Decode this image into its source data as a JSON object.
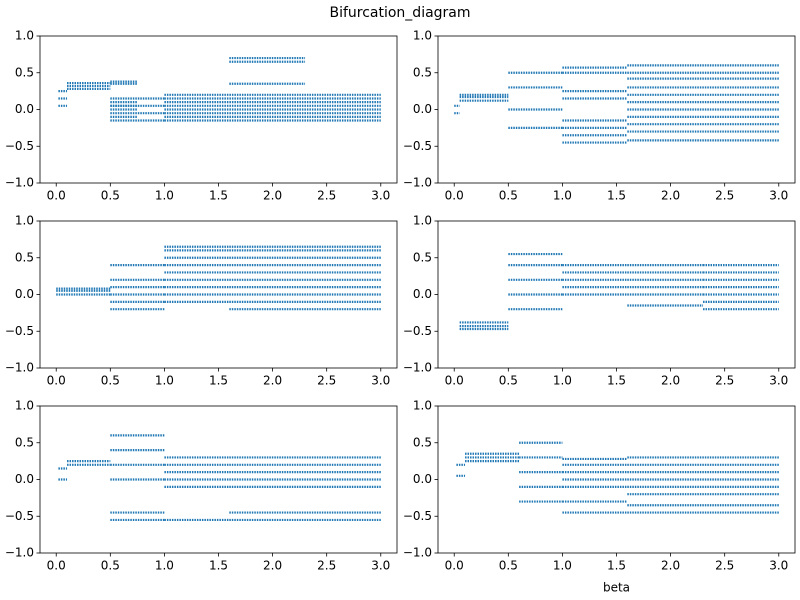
{
  "title": "Bifurcation_diagram",
  "chart_data": [
    {
      "type": "scatter",
      "color": "#1f77b4",
      "xlim": [
        -0.15,
        3.15
      ],
      "ylim": [
        -1,
        1
      ],
      "xticks": [
        {
          "value": 0,
          "label": "0.0"
        },
        {
          "value": 0.5,
          "label": "0.5"
        },
        {
          "value": 1,
          "label": "1.0"
        },
        {
          "value": 1.5,
          "label": "1.5"
        },
        {
          "value": 2,
          "label": "2.0"
        },
        {
          "value": 2.5,
          "label": "2.5"
        },
        {
          "value": 3,
          "label": "3.0"
        }
      ],
      "yticks": [
        {
          "value": -1,
          "label": "−1.0"
        },
        {
          "value": -0.5,
          "label": "−0.5"
        },
        {
          "value": 0,
          "label": "0.0"
        },
        {
          "value": 0.5,
          "label": "0.5"
        },
        {
          "value": 1,
          "label": "1.0"
        }
      ],
      "bands": [
        {
          "x": [
            0.02,
            0.1
          ],
          "levels": [
            0.05,
            0.15,
            0.25
          ]
        },
        {
          "x": [
            0.1,
            0.5
          ],
          "levels": [
            0.28,
            0.32,
            0.36
          ]
        },
        {
          "x": [
            0.5,
            0.75
          ],
          "levels": [
            0.35,
            0.38,
            0.0,
            0.05,
            0.1,
            -0.1
          ]
        },
        {
          "x": [
            0.5,
            1.0
          ],
          "levels": [
            -0.15,
            -0.05,
            0.05,
            0.15
          ]
        },
        {
          "x": [
            1.0,
            3.0
          ],
          "levels": [
            -0.15,
            -0.1,
            -0.05,
            0,
            0.05,
            0.1,
            0.15,
            0.2
          ]
        },
        {
          "x": [
            1.6,
            2.3
          ],
          "levels": [
            0.65,
            0.7,
            0.35
          ]
        }
      ]
    },
    {
      "type": "scatter",
      "color": "#1f77b4",
      "xlim": [
        -0.15,
        3.15
      ],
      "ylim": [
        -1,
        1
      ],
      "xticks": [
        {
          "value": 0,
          "label": "0.0"
        },
        {
          "value": 0.5,
          "label": "0.5"
        },
        {
          "value": 1,
          "label": "1.0"
        },
        {
          "value": 1.5,
          "label": "1.5"
        },
        {
          "value": 2,
          "label": "2.0"
        },
        {
          "value": 2.5,
          "label": "2.5"
        },
        {
          "value": 3,
          "label": "3.0"
        }
      ],
      "yticks": [
        {
          "value": -1,
          "label": "−1.0"
        },
        {
          "value": -0.5,
          "label": "−0.5"
        },
        {
          "value": 0,
          "label": "0.0"
        },
        {
          "value": 0.5,
          "label": "0.5"
        },
        {
          "value": 1,
          "label": "1.0"
        }
      ],
      "bands": [
        {
          "x": [
            0,
            0.05
          ],
          "levels": [
            -0.05,
            0.05
          ]
        },
        {
          "x": [
            0.05,
            0.5
          ],
          "levels": [
            0.12,
            0.17,
            0.2
          ]
        },
        {
          "x": [
            0.5,
            1.0
          ],
          "levels": [
            -0.25,
            0,
            0.3,
            0.5
          ]
        },
        {
          "x": [
            1.0,
            1.6
          ],
          "levels": [
            -0.45,
            -0.35,
            -0.25,
            -0.15,
            0.15,
            0.25,
            0.5,
            0.57
          ]
        },
        {
          "x": [
            1.6,
            3.0
          ],
          "levels": [
            -0.42,
            -0.3,
            -0.2,
            -0.1,
            0,
            0.1,
            0.2,
            0.3,
            0.42,
            0.5,
            0.6
          ]
        }
      ]
    },
    {
      "type": "scatter",
      "color": "#1f77b4",
      "xlim": [
        -0.15,
        3.15
      ],
      "ylim": [
        -1,
        1
      ],
      "xticks": [
        {
          "value": 0,
          "label": "0.0"
        },
        {
          "value": 0.5,
          "label": "0.5"
        },
        {
          "value": 1,
          "label": "1.0"
        },
        {
          "value": 1.5,
          "label": "1.5"
        },
        {
          "value": 2,
          "label": "2.0"
        },
        {
          "value": 2.5,
          "label": "2.5"
        },
        {
          "value": 3,
          "label": "3.0"
        }
      ],
      "yticks": [
        {
          "value": -1,
          "label": "−1.0"
        },
        {
          "value": -0.5,
          "label": "−0.5"
        },
        {
          "value": 0,
          "label": "0.0"
        },
        {
          "value": 0.5,
          "label": "0.5"
        },
        {
          "value": 1,
          "label": "1.0"
        }
      ],
      "bands": [
        {
          "x": [
            0,
            0.5
          ],
          "levels": [
            0.0,
            0.05,
            0.08
          ]
        },
        {
          "x": [
            0.5,
            1.0
          ],
          "levels": [
            -0.2,
            -0.1,
            0,
            0.1,
            0.2,
            0.4
          ]
        },
        {
          "x": [
            1.0,
            1.6
          ],
          "levels": [
            -0.1,
            0,
            0.1,
            0.2,
            0.3,
            0.4,
            0.5,
            0.6,
            0.65
          ]
        },
        {
          "x": [
            1.6,
            3.0
          ],
          "levels": [
            -0.2,
            -0.1,
            0,
            0.1,
            0.2,
            0.3,
            0.4,
            0.5,
            0.6,
            0.65
          ]
        }
      ]
    },
    {
      "type": "scatter",
      "color": "#1f77b4",
      "xlim": [
        -0.15,
        3.15
      ],
      "ylim": [
        -1,
        1
      ],
      "xticks": [
        {
          "value": 0,
          "label": "0.0"
        },
        {
          "value": 0.5,
          "label": "0.5"
        },
        {
          "value": 1,
          "label": "1.0"
        },
        {
          "value": 1.5,
          "label": "1.5"
        },
        {
          "value": 2,
          "label": "2.0"
        },
        {
          "value": 2.5,
          "label": "2.5"
        },
        {
          "value": 3,
          "label": "3.0"
        }
      ],
      "yticks": [
        {
          "value": -1,
          "label": "−1.0"
        },
        {
          "value": -0.5,
          "label": "−0.5"
        },
        {
          "value": 0,
          "label": "0.0"
        },
        {
          "value": 0.5,
          "label": "0.5"
        },
        {
          "value": 1,
          "label": "1.0"
        }
      ],
      "bands": [
        {
          "x": [
            0.05,
            0.5
          ],
          "levels": [
            -0.38,
            -0.43,
            -0.47
          ]
        },
        {
          "x": [
            0.5,
            1.0
          ],
          "levels": [
            -0.2,
            0,
            0.2,
            0.4,
            0.55
          ]
        },
        {
          "x": [
            1.0,
            1.6
          ],
          "levels": [
            0,
            0.1,
            0.2,
            0.3,
            0.4
          ]
        },
        {
          "x": [
            1.6,
            2.3
          ],
          "levels": [
            -0.15,
            0,
            0.1,
            0.2,
            0.3,
            0.4
          ]
        },
        {
          "x": [
            2.3,
            3.0
          ],
          "levels": [
            -0.2,
            -0.1,
            0,
            0.1,
            0.2,
            0.3,
            0.4
          ]
        }
      ]
    },
    {
      "type": "scatter",
      "color": "#1f77b4",
      "xlim": [
        -0.15,
        3.15
      ],
      "ylim": [
        -1,
        1
      ],
      "xticks": [
        {
          "value": 0,
          "label": "0.0"
        },
        {
          "value": 0.5,
          "label": "0.5"
        },
        {
          "value": 1,
          "label": "1.0"
        },
        {
          "value": 1.5,
          "label": "1.5"
        },
        {
          "value": 2,
          "label": "2.0"
        },
        {
          "value": 2.5,
          "label": "2.5"
        },
        {
          "value": 3,
          "label": "3.0"
        }
      ],
      "yticks": [
        {
          "value": -1,
          "label": "−1.0"
        },
        {
          "value": -0.5,
          "label": "−0.5"
        },
        {
          "value": 0,
          "label": "0.0"
        },
        {
          "value": 0.5,
          "label": "0.5"
        },
        {
          "value": 1,
          "label": "1.0"
        }
      ],
      "bands": [
        {
          "x": [
            0.02,
            0.1
          ],
          "levels": [
            0,
            0.15
          ]
        },
        {
          "x": [
            0.1,
            0.5
          ],
          "levels": [
            0.2,
            0.25
          ]
        },
        {
          "x": [
            0.5,
            1.0
          ],
          "levels": [
            -0.55,
            -0.45,
            0,
            0.2,
            0.4,
            0.6
          ]
        },
        {
          "x": [
            1.0,
            1.6
          ],
          "levels": [
            -0.55,
            -0.1,
            0,
            0.1,
            0.2,
            0.3
          ]
        },
        {
          "x": [
            1.6,
            3.0
          ],
          "levels": [
            -0.55,
            -0.45,
            -0.1,
            0,
            0.1,
            0.2,
            0.3
          ]
        }
      ]
    },
    {
      "type": "scatter",
      "color": "#1f77b4",
      "xlim": [
        -0.15,
        3.15
      ],
      "ylim": [
        -1,
        1
      ],
      "xlabel": "beta",
      "xticks": [
        {
          "value": 0,
          "label": "0.0"
        },
        {
          "value": 0.5,
          "label": "0.5"
        },
        {
          "value": 1,
          "label": "1.0"
        },
        {
          "value": 1.5,
          "label": "1.5"
        },
        {
          "value": 2,
          "label": "2.0"
        },
        {
          "value": 2.5,
          "label": "2.5"
        },
        {
          "value": 3,
          "label": "3.0"
        }
      ],
      "yticks": [
        {
          "value": -1,
          "label": "−1.0"
        },
        {
          "value": -0.5,
          "label": "−0.5"
        },
        {
          "value": 0,
          "label": "0.0"
        },
        {
          "value": 0.5,
          "label": "0.5"
        },
        {
          "value": 1,
          "label": "1.0"
        }
      ],
      "bands": [
        {
          "x": [
            0.02,
            0.1
          ],
          "levels": [
            0.05,
            0.2
          ]
        },
        {
          "x": [
            0.1,
            0.6
          ],
          "levels": [
            0.25,
            0.3,
            0.35
          ]
        },
        {
          "x": [
            0.6,
            1.0
          ],
          "levels": [
            -0.3,
            -0.1,
            0.1,
            0.3,
            0.5
          ]
        },
        {
          "x": [
            1.0,
            1.6
          ],
          "levels": [
            -0.45,
            -0.3,
            -0.1,
            0,
            0.1,
            0.2,
            0.28
          ]
        },
        {
          "x": [
            1.6,
            3.0
          ],
          "levels": [
            -0.45,
            -0.35,
            -0.2,
            -0.1,
            0,
            0.1,
            0.2,
            0.3
          ]
        }
      ]
    }
  ]
}
